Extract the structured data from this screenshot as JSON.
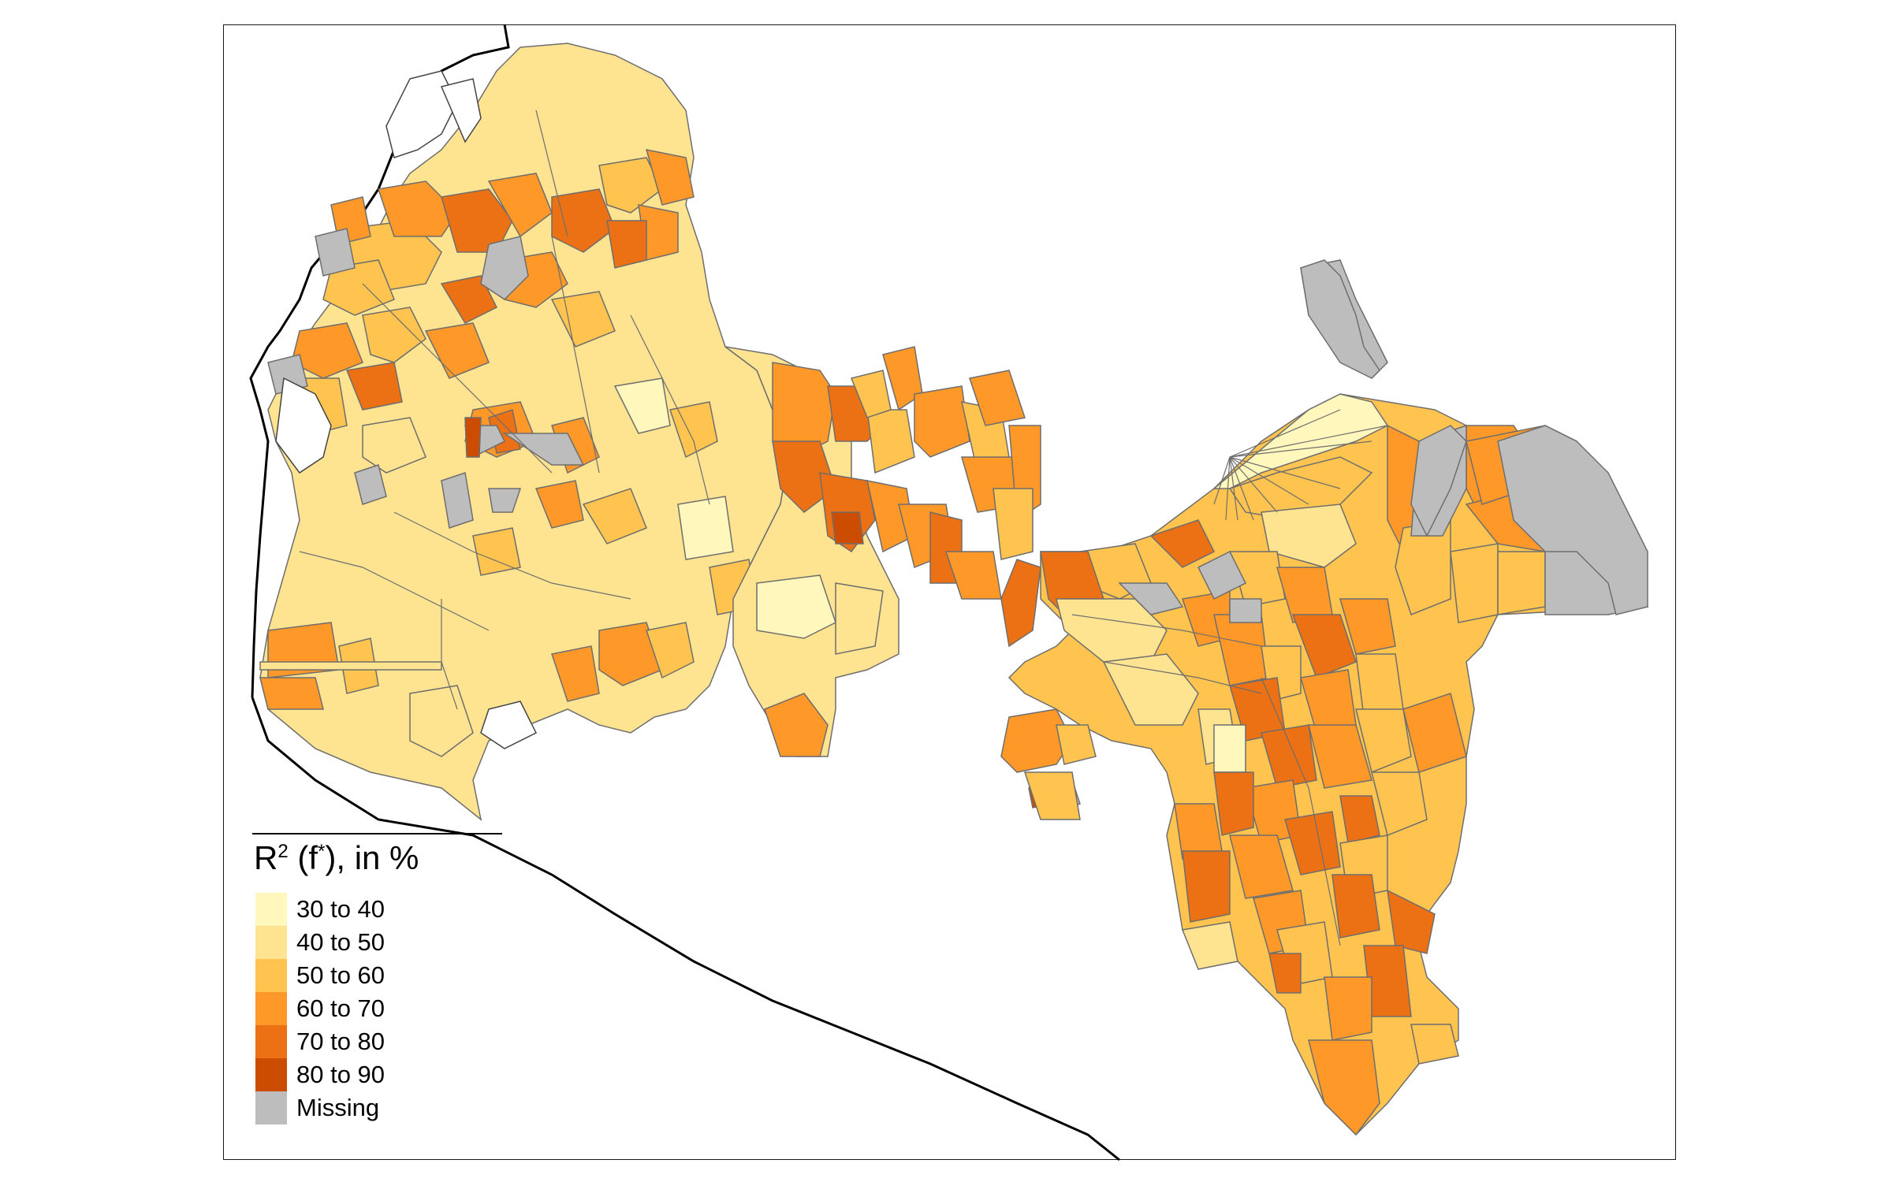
{
  "legend": {
    "title_main": "R",
    "title_sup": "2",
    "title_paren_open": " (f",
    "title_star": "*",
    "title_rest": "), in %",
    "items": [
      {
        "label": "30 to 40",
        "color": "#FFF7BC"
      },
      {
        "label": "40 to 50",
        "color": "#FEE391"
      },
      {
        "label": "50 to 60",
        "color": "#FEC44F"
      },
      {
        "label": "60 to 70",
        "color": "#FE9929"
      },
      {
        "label": "70 to 80",
        "color": "#EC7014"
      },
      {
        "label": "80 to 90",
        "color": "#CC4C02"
      },
      {
        "label": "Missing",
        "color": "#BDBDBD"
      }
    ]
  },
  "colors": {
    "boundary": "#6e6e6e",
    "outline": "#000000",
    "missing": "#BDBDBD"
  }
}
